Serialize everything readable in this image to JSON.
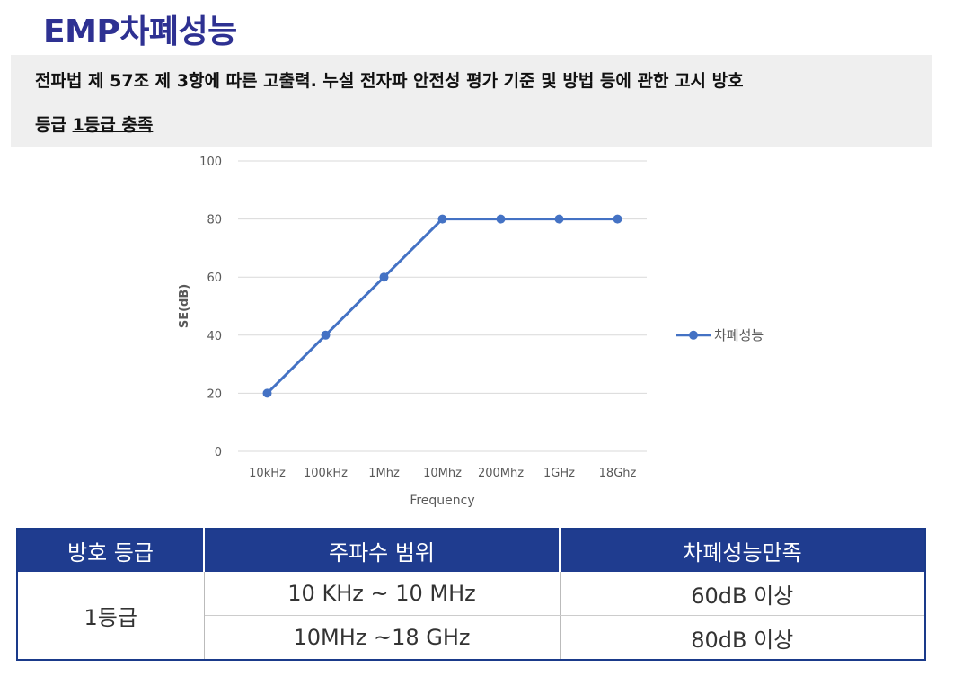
{
  "page": {
    "title": "EMP차폐성능",
    "notice_line1": "전파법 제 57조 제 3항에 따른 고출력. 누설 전자파 안전성 평가 기준 및 방법 등에 관한 고시 방호",
    "notice_line2_prefix": "등급 ",
    "notice_line2_emph": "1등급 충족"
  },
  "chart_data": {
    "type": "line",
    "categories": [
      "10kHz",
      "100kHz",
      "1Mhz",
      "10Mhz",
      "200Mhz",
      "1GHz",
      "18Ghz"
    ],
    "series": [
      {
        "name": "차폐성능",
        "values": [
          20,
          40,
          60,
          80,
          80,
          80,
          80
        ],
        "color": "#4472c4"
      }
    ],
    "xlabel": "Frequency",
    "ylabel": "SE(dB)",
    "ylim": [
      0,
      100
    ],
    "yticks": [
      0,
      20,
      40,
      60,
      80,
      100
    ],
    "grid": true,
    "legend": "right"
  },
  "table": {
    "headers": [
      "방호 등급",
      "주파수 범위",
      "차폐성능만족"
    ],
    "grade": "1등급",
    "rows": [
      {
        "range": "10 KHz ~ 10 MHz",
        "performance": "60dB 이상"
      },
      {
        "range": "10MHz ~18 GHz",
        "performance": "80dB 이상"
      }
    ],
    "header_color": "#1f3c8f"
  }
}
